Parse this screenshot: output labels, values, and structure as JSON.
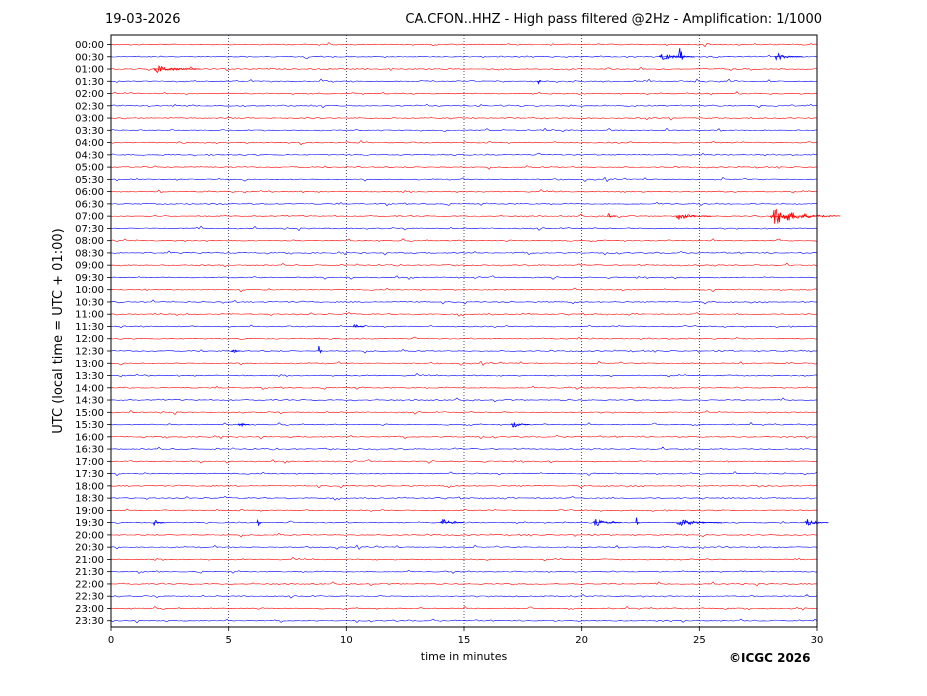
{
  "header": {
    "date": "19-03-2026",
    "title": "CA.CFON..HHZ - High pass filtered @2Hz - Amplification: 1/1000"
  },
  "footer": {
    "copyright": "©ICGC 2026"
  },
  "chart_data": {
    "type": "line",
    "title": "CA.CFON..HHZ - High pass filtered @2Hz - Amplification: 1/1000",
    "xlabel": "time in minutes",
    "ylabel": "UTC (local time = UTC + 01:00)",
    "xlim": [
      0,
      30
    ],
    "xticks": [
      0,
      5,
      10,
      15,
      20,
      25,
      30
    ],
    "grid": "vertical dotted at 5-minute intervals",
    "trace_colors": [
      "#ff0000",
      "#0000ff"
    ],
    "row_labels": [
      "00:00",
      "00:30",
      "01:00",
      "01:30",
      "02:00",
      "02:30",
      "03:00",
      "03:30",
      "04:00",
      "04:30",
      "05:00",
      "05:30",
      "06:00",
      "06:30",
      "07:00",
      "07:30",
      "08:00",
      "08:30",
      "09:00",
      "09:30",
      "10:00",
      "10:30",
      "11:00",
      "11:30",
      "12:00",
      "12:30",
      "13:00",
      "13:30",
      "14:00",
      "14:30",
      "15:00",
      "15:30",
      "16:00",
      "16:30",
      "17:00",
      "17:30",
      "18:00",
      "18:30",
      "19:00",
      "19:30",
      "20:00",
      "20:30",
      "21:00",
      "21:30",
      "22:00",
      "22:30",
      "23:00",
      "23:30"
    ],
    "row_color_pattern": "alternating: 00:00 row red, 00:30 row blue, ...",
    "events": [
      {
        "row": "00:30",
        "minute": 24.1,
        "amplitude": "large",
        "duration_min": 0.3
      },
      {
        "row": "00:30",
        "minute": 23.3,
        "amplitude": "small",
        "duration_min": 1.5
      },
      {
        "row": "00:30",
        "minute": 28.2,
        "amplitude": "small",
        "duration_min": 1.2
      },
      {
        "row": "01:00",
        "minute": 1.8,
        "amplitude": "small",
        "duration_min": 2.0
      },
      {
        "row": "01:30",
        "minute": 18.1,
        "amplitude": "medium",
        "duration_min": 0.2
      },
      {
        "row": "07:00",
        "minute": 21.1,
        "amplitude": "small",
        "duration_min": 0.4
      },
      {
        "row": "07:00",
        "minute": 24.0,
        "amplitude": "small",
        "duration_min": 1.5
      },
      {
        "row": "07:00",
        "minute": 28.0,
        "amplitude": "medium",
        "duration_min": 3.0
      },
      {
        "row": "11:30",
        "minute": 10.3,
        "amplitude": "small",
        "duration_min": 0.5
      },
      {
        "row": "12:30",
        "minute": 5.1,
        "amplitude": "small",
        "duration_min": 0.4
      },
      {
        "row": "12:30",
        "minute": 8.8,
        "amplitude": "medium",
        "duration_min": 0.2
      },
      {
        "row": "15:30",
        "minute": 5.4,
        "amplitude": "small",
        "duration_min": 0.5
      },
      {
        "row": "15:30",
        "minute": 17.0,
        "amplitude": "small",
        "duration_min": 0.8
      },
      {
        "row": "19:30",
        "minute": 1.8,
        "amplitude": "small",
        "duration_min": 0.5
      },
      {
        "row": "19:30",
        "minute": 6.2,
        "amplitude": "medium",
        "duration_min": 0.2
      },
      {
        "row": "19:30",
        "minute": 14.0,
        "amplitude": "small",
        "duration_min": 1.0
      },
      {
        "row": "19:30",
        "minute": 20.5,
        "amplitude": "small",
        "duration_min": 1.2
      },
      {
        "row": "19:30",
        "minute": 22.3,
        "amplitude": "medium",
        "duration_min": 0.2
      },
      {
        "row": "19:30",
        "minute": 24.0,
        "amplitude": "small",
        "duration_min": 2.0
      },
      {
        "row": "19:30",
        "minute": 29.5,
        "amplitude": "small",
        "duration_min": 1.0
      }
    ]
  }
}
